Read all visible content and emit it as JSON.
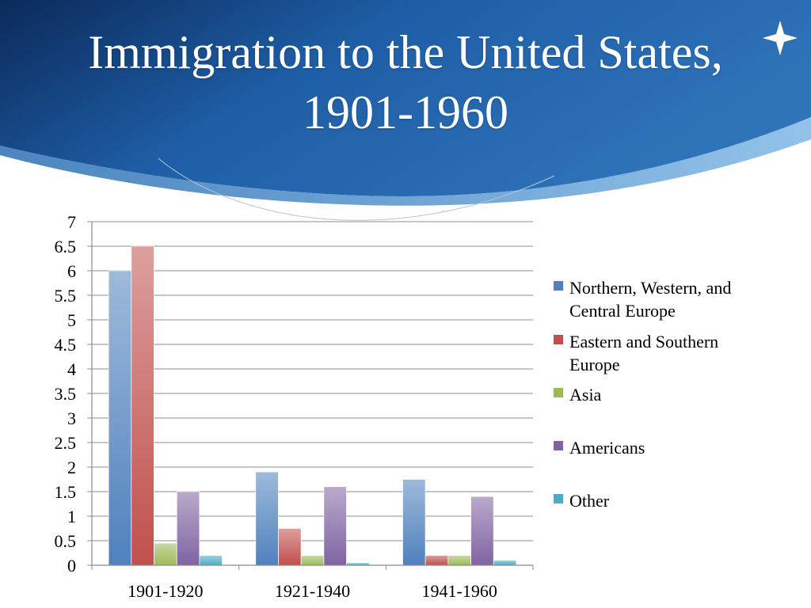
{
  "slide": {
    "title": "Immigration to the United States, 1901-1960"
  },
  "colors": {
    "header_dark": "#0b2a5a",
    "header_mid": "#1e5ea6",
    "header_light": "#4d8fcc",
    "accent_band": "#6aaee0"
  },
  "chart_data": {
    "type": "bar",
    "title": "",
    "xlabel": "",
    "ylabel": "",
    "ylim": [
      0,
      7
    ],
    "yticks": [
      0,
      0.5,
      1,
      1.5,
      2,
      2.5,
      3,
      3.5,
      4,
      4.5,
      5,
      5.5,
      6,
      6.5,
      7
    ],
    "categories": [
      "1901-1920",
      "1921-1940",
      "1941-1960"
    ],
    "series": [
      {
        "name": "Northern, Western, and Central Europe",
        "values": [
          6.0,
          1.9,
          1.75
        ],
        "color": "#4f81bd"
      },
      {
        "name": "Eastern and Southern Europe",
        "values": [
          6.5,
          0.75,
          0.2
        ],
        "color": "#c0504d"
      },
      {
        "name": "Asia",
        "values": [
          0.45,
          0.2,
          0.2
        ],
        "color": "#9bbb59"
      },
      {
        "name": "Americans",
        "values": [
          1.5,
          1.6,
          1.4
        ],
        "color": "#8064a2"
      },
      {
        "name": "Other",
        "values": [
          0.2,
          0.05,
          0.1
        ],
        "color": "#4bacc6"
      }
    ],
    "grid": true,
    "legend_position": "right"
  }
}
